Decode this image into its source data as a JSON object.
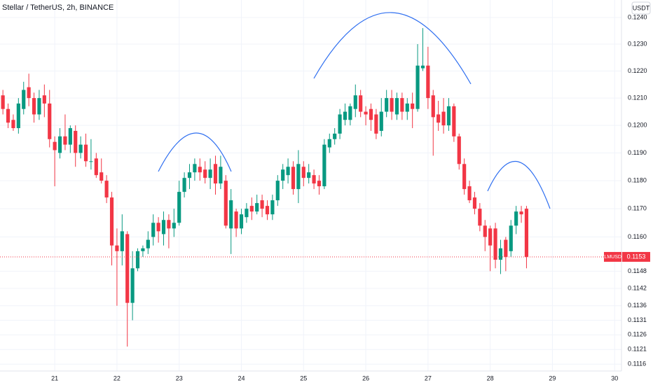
{
  "chart_data": {
    "type": "candlestick",
    "title": "Stellar / TetherUS, 2h, BINANCE",
    "currency": "USDT",
    "symbol": "XLMUSDT",
    "last_price": {
      "value": 0.1153,
      "label": "0.1153"
    },
    "log_scale": true,
    "grid": true,
    "up_color": "#089981",
    "down_color": "#f23645",
    "xlim": [
      20.12,
      30.11
    ],
    "xticks": [
      21,
      22,
      23,
      24,
      25,
      26,
      27,
      28,
      29,
      30
    ],
    "ylim": [
      0.11137,
      0.12466
    ],
    "yticks": [
      {
        "value": 0.124,
        "label": "0.1240"
      },
      {
        "value": 0.123,
        "label": "0.1230"
      },
      {
        "value": 0.122,
        "label": "0.1220"
      },
      {
        "value": 0.121,
        "label": "0.1210"
      },
      {
        "value": 0.12,
        "label": "0.1200"
      },
      {
        "value": 0.119,
        "label": "0.1190"
      },
      {
        "value": 0.118,
        "label": "0.1180"
      },
      {
        "value": 0.117,
        "label": "0.1170"
      },
      {
        "value": 0.116,
        "label": "0.1160"
      },
      {
        "value": 0.1148,
        "label": "0.1148"
      },
      {
        "value": 0.1142,
        "label": "0.1142"
      },
      {
        "value": 0.1136,
        "label": "0.1136"
      },
      {
        "value": 0.1131,
        "label": "0.1131"
      },
      {
        "value": 0.1126,
        "label": "0.1126"
      },
      {
        "value": 0.1121,
        "label": "0.1121"
      },
      {
        "value": 0.1116,
        "label": "0.1116"
      }
    ],
    "x": [
      20.1667,
      20.25,
      20.3333,
      20.4167,
      20.5,
      20.5833,
      20.6667,
      20.75,
      20.8333,
      20.9167,
      21,
      21.0833,
      21.1667,
      21.25,
      21.3333,
      21.4167,
      21.5,
      21.5833,
      21.6667,
      21.75,
      21.8333,
      21.9167,
      22,
      22.0833,
      22.1667,
      22.25,
      22.3333,
      22.4167,
      22.5,
      22.5833,
      22.6667,
      22.75,
      22.8333,
      22.9167,
      23,
      23.0833,
      23.1667,
      23.25,
      23.3333,
      23.4167,
      23.5,
      23.5833,
      23.6667,
      23.75,
      23.8333,
      23.9167,
      24,
      24.0833,
      24.1667,
      24.25,
      24.3333,
      24.4167,
      24.5,
      24.5833,
      24.6667,
      24.75,
      24.8333,
      24.9167,
      25,
      25.0833,
      25.1667,
      25.25,
      25.3333,
      25.4167,
      25.5,
      25.5833,
      25.6667,
      25.75,
      25.8333,
      25.9167,
      26,
      26.0833,
      26.1667,
      26.25,
      26.3333,
      26.4167,
      26.5,
      26.5833,
      26.6667,
      26.75,
      26.8333,
      26.9167,
      27,
      27.0833,
      27.1667,
      27.25,
      27.3333,
      27.4167,
      27.5,
      27.5833,
      27.6667,
      27.75,
      27.8333,
      27.9167,
      28,
      28.0833,
      28.1667,
      28.25,
      28.3333,
      28.4167,
      28.5,
      28.5833
    ],
    "open": [
      0.1211,
      0.1206,
      0.1202,
      0.1199,
      0.1206,
      0.1214,
      0.121,
      0.1204,
      0.1211,
      0.1208,
      0.1194,
      0.119,
      0.1196,
      0.1193,
      0.1198,
      0.119,
      0.1193,
      0.1187,
      0.1188,
      0.1183,
      0.118,
      0.1174,
      0.1157,
      0.1155,
      0.1161,
      0.1137,
      0.1149,
      0.1155,
      0.1156,
      0.116,
      0.1165,
      0.1161,
      0.1166,
      0.1163,
      0.1165,
      0.1176,
      0.1181,
      0.1183,
      0.1185,
      0.1184,
      0.1181,
      0.1186,
      0.1179,
      0.118,
      0.1163,
      0.1169,
      0.1163,
      0.1167,
      0.1171,
      0.1169,
      0.1173,
      0.1171,
      0.1168,
      0.1173,
      0.118,
      0.1182,
      0.1185,
      0.1177,
      0.1185,
      0.1181,
      0.1182,
      0.118,
      0.1178,
      0.1192,
      0.1195,
      0.1197,
      0.1202,
      0.1202,
      0.1206,
      0.1211,
      0.1205,
      0.1206,
      0.1204,
      0.1198,
      0.1205,
      0.121,
      0.1204,
      0.121,
      0.1205,
      0.1208,
      0.1206,
      0.1221,
      0.1222,
      0.1211,
      0.1204,
      0.1205,
      0.12,
      0.1207,
      0.1196,
      0.1186,
      0.1178,
      0.1174,
      0.117,
      0.1164,
      0.1163,
      0.1163,
      0.1152,
      0.1159,
      0.1155,
      0.1164,
      0.1169,
      0.117
    ],
    "high": [
      0.1213,
      0.1208,
      0.1204,
      0.121,
      0.1216,
      0.1219,
      0.1212,
      0.1213,
      0.1215,
      0.1213,
      0.1196,
      0.1199,
      0.1204,
      0.12,
      0.12,
      0.1196,
      0.1197,
      0.1195,
      0.119,
      0.1188,
      0.1182,
      0.1176,
      0.1163,
      0.1168,
      0.1162,
      0.1155,
      0.1156,
      0.1157,
      0.1162,
      0.1168,
      0.1167,
      0.1169,
      0.1168,
      0.117,
      0.118,
      0.1183,
      0.1186,
      0.1188,
      0.1188,
      0.1187,
      0.1188,
      0.1189,
      0.1189,
      0.1182,
      0.1177,
      0.117,
      0.117,
      0.1172,
      0.1174,
      0.1175,
      0.1175,
      0.1173,
      0.1175,
      0.1182,
      0.1186,
      0.1188,
      0.1187,
      0.1191,
      0.1187,
      0.1186,
      0.1184,
      0.1182,
      0.1195,
      0.1197,
      0.1199,
      0.1206,
      0.1208,
      0.1208,
      0.1215,
      0.1213,
      0.1207,
      0.1208,
      0.1206,
      0.121,
      0.1213,
      0.1213,
      0.1212,
      0.1212,
      0.121,
      0.1212,
      0.123,
      0.1236,
      0.1229,
      0.1213,
      0.1209,
      0.121,
      0.121,
      0.1208,
      0.1197,
      0.1188,
      0.118,
      0.1176,
      0.1172,
      0.1166,
      0.1164,
      0.1165,
      0.1159,
      0.116,
      0.1166,
      0.1171,
      0.1171,
      0.1171
    ],
    "low": [
      0.1204,
      0.1199,
      0.1198,
      0.1197,
      0.1204,
      0.1207,
      0.1201,
      0.1202,
      0.1203,
      0.1192,
      0.1178,
      0.1188,
      0.1191,
      0.119,
      0.1185,
      0.1188,
      0.1185,
      0.1184,
      0.1181,
      0.1179,
      0.1172,
      0.115,
      0.1136,
      0.115,
      0.1122,
      0.1131,
      0.1148,
      0.1153,
      0.1154,
      0.1157,
      0.1158,
      0.1157,
      0.1156,
      0.116,
      0.1164,
      0.1174,
      0.1177,
      0.118,
      0.118,
      0.1179,
      0.1177,
      0.1175,
      0.1177,
      0.1163,
      0.1154,
      0.116,
      0.1161,
      0.1165,
      0.1166,
      0.1168,
      0.1167,
      0.1166,
      0.1166,
      0.1171,
      0.1177,
      0.1179,
      0.1175,
      0.1172,
      0.1178,
      0.1179,
      0.1177,
      0.1175,
      0.1177,
      0.119,
      0.1193,
      0.1195,
      0.12,
      0.12,
      0.1203,
      0.1203,
      0.12,
      0.1198,
      0.1195,
      0.1196,
      0.1203,
      0.1202,
      0.1202,
      0.1202,
      0.1202,
      0.1199,
      0.1205,
      0.122,
      0.1206,
      0.1189,
      0.1198,
      0.1197,
      0.1198,
      0.1194,
      0.1184,
      0.1175,
      0.1172,
      0.1168,
      0.1162,
      0.1155,
      0.1148,
      0.1149,
      0.1147,
      0.1148,
      0.1153,
      0.1161,
      0.1165,
      0.1149
    ],
    "close": [
      0.1206,
      0.1201,
      0.1199,
      0.1208,
      0.1213,
      0.121,
      0.1204,
      0.121,
      0.1208,
      0.1195,
      0.1191,
      0.1196,
      0.1193,
      0.1199,
      0.119,
      0.1193,
      0.1187,
      0.1187,
      0.1182,
      0.118,
      0.1174,
      0.1157,
      0.1155,
      0.1162,
      0.1137,
      0.1149,
      0.1155,
      0.1156,
      0.1159,
      0.1165,
      0.1162,
      0.1166,
      0.1163,
      0.1165,
      0.1176,
      0.1181,
      0.1183,
      0.1186,
      0.1183,
      0.1181,
      0.1184,
      0.1179,
      0.1185,
      0.1164,
      0.1173,
      0.1163,
      0.1168,
      0.117,
      0.1169,
      0.1172,
      0.117,
      0.1168,
      0.1173,
      0.118,
      0.1184,
      0.1185,
      0.1177,
      0.1186,
      0.1181,
      0.1183,
      0.1179,
      0.1178,
      0.1193,
      0.1195,
      0.1197,
      0.1204,
      0.1205,
      0.1207,
      0.1211,
      0.1205,
      0.1204,
      0.1202,
      0.1197,
      0.1205,
      0.121,
      0.1205,
      0.121,
      0.1205,
      0.1208,
      0.1206,
      0.1222,
      0.1222,
      0.121,
      0.1203,
      0.1201,
      0.12,
      0.1207,
      0.1196,
      0.1186,
      0.1177,
      0.1173,
      0.117,
      0.1164,
      0.116,
      0.1157,
      0.1152,
      0.1156,
      0.1153,
      0.1164,
      0.1169,
      0.1168,
      0.1153
    ]
  }
}
